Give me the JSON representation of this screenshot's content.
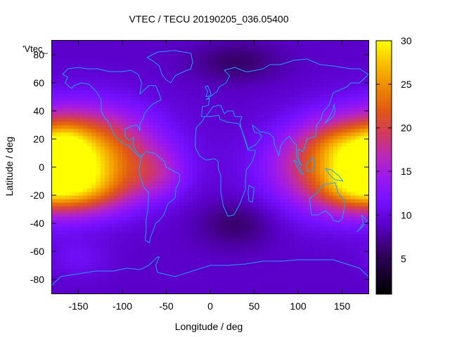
{
  "chart_data": {
    "type": "heatmap",
    "title": "VTEC / TECU 20190205_036.05400",
    "xlabel": "Longitude / deg",
    "ylabel": "Latitude / deg",
    "key_label": "'Vtec_",
    "xlim": [
      -180,
      180
    ],
    "ylim": [
      -90,
      90
    ],
    "x_ticks": [
      -150,
      -100,
      -50,
      0,
      50,
      100,
      150
    ],
    "y_ticks": [
      -80,
      -60,
      -40,
      -20,
      0,
      20,
      40,
      60,
      80
    ],
    "color_range": [
      1,
      30
    ],
    "colorbar_ticks": [
      5,
      10,
      15,
      20,
      25,
      30
    ],
    "colormap": [
      "#000000",
      "#1a0033",
      "#3a0070",
      "#5a00c8",
      "#7410ff",
      "#9a18f0",
      "#b928b8",
      "#d23c5a",
      "#e05a14",
      "#ee8a00",
      "#f8c000",
      "#ffff00"
    ],
    "overlay_color": "#1aa3ff",
    "grid": false,
    "features": [
      {
        "lon": -140,
        "lat": 10,
        "sx": 55,
        "sy": 22,
        "a": 15
      },
      {
        "lon": -150,
        "lat": -16,
        "sx": 40,
        "sy": 12,
        "a": 8
      },
      {
        "lon": -165,
        "lat": 15,
        "sx": 18,
        "sy": 12,
        "a": 4
      },
      {
        "lon": -60,
        "lat": -5,
        "sx": 25,
        "sy": 12,
        "a": 4
      },
      {
        "lon": 150,
        "lat": 0,
        "sx": 55,
        "sy": 22,
        "a": 13
      },
      {
        "lon": 160,
        "lat": -14,
        "sx": 25,
        "sy": 10,
        "a": 4
      },
      {
        "lon": 150,
        "lat": 16,
        "sx": 28,
        "sy": 10,
        "a": 3
      },
      {
        "lon": 30,
        "lat": -40,
        "sx": 30,
        "sy": 12,
        "a": -3
      },
      {
        "lon": 30,
        "lat": 75,
        "sx": 35,
        "sy": 10,
        "a": -3
      },
      {
        "lon": -150,
        "lat": -65,
        "sx": 25,
        "sy": 10,
        "a": 2
      }
    ],
    "background_level": 9,
    "coastlines": [
      {
        "name": "north-america",
        "points": [
          [
            -168,
            66
          ],
          [
            -162,
            70
          ],
          [
            -150,
            71
          ],
          [
            -140,
            70
          ],
          [
            -128,
            70
          ],
          [
            -115,
            68
          ],
          [
            -100,
            68
          ],
          [
            -90,
            69
          ],
          [
            -82,
            66
          ],
          [
            -78,
            60
          ],
          [
            -80,
            52
          ],
          [
            -70,
            58
          ],
          [
            -62,
            58
          ],
          [
            -58,
            52
          ],
          [
            -56,
            48
          ],
          [
            -65,
            45
          ],
          [
            -70,
            42
          ],
          [
            -75,
            38
          ],
          [
            -76,
            35
          ],
          [
            -80,
            31
          ],
          [
            -80,
            26
          ],
          [
            -82,
            29
          ],
          [
            -84,
            30
          ],
          [
            -90,
            29
          ],
          [
            -97,
            27
          ],
          [
            -97,
            22
          ],
          [
            -92,
            19
          ],
          [
            -87,
            21
          ],
          [
            -88,
            16
          ],
          [
            -83,
            10
          ],
          [
            -78,
            8
          ],
          [
            -80,
            7
          ],
          [
            -85,
            10
          ],
          [
            -92,
            15
          ],
          [
            -97,
            16
          ],
          [
            -105,
            20
          ],
          [
            -110,
            24
          ],
          [
            -114,
            30
          ],
          [
            -117,
            33
          ],
          [
            -121,
            36
          ],
          [
            -124,
            40
          ],
          [
            -124,
            48
          ],
          [
            -130,
            54
          ],
          [
            -138,
            59
          ],
          [
            -147,
            60
          ],
          [
            -155,
            58
          ],
          [
            -158,
            56
          ],
          [
            -165,
            60
          ],
          [
            -162,
            64
          ],
          [
            -168,
            66
          ]
        ]
      },
      {
        "name": "south-america",
        "points": [
          [
            -78,
            8
          ],
          [
            -73,
            11
          ],
          [
            -64,
            10
          ],
          [
            -60,
            8
          ],
          [
            -52,
            4
          ],
          [
            -50,
            0
          ],
          [
            -44,
            -2
          ],
          [
            -35,
            -5
          ],
          [
            -35,
            -10
          ],
          [
            -39,
            -15
          ],
          [
            -40,
            -22
          ],
          [
            -48,
            -26
          ],
          [
            -53,
            -34
          ],
          [
            -58,
            -38
          ],
          [
            -62,
            -40
          ],
          [
            -65,
            -45
          ],
          [
            -68,
            -50
          ],
          [
            -69,
            -54
          ],
          [
            -74,
            -52
          ],
          [
            -73,
            -45
          ],
          [
            -73,
            -37
          ],
          [
            -71,
            -30
          ],
          [
            -70,
            -18
          ],
          [
            -76,
            -14
          ],
          [
            -80,
            -6
          ],
          [
            -81,
            -2
          ],
          [
            -80,
            1
          ],
          [
            -78,
            8
          ]
        ]
      },
      {
        "name": "greenland",
        "points": [
          [
            -72,
            78
          ],
          [
            -60,
            82
          ],
          [
            -40,
            83
          ],
          [
            -22,
            81
          ],
          [
            -20,
            75
          ],
          [
            -22,
            70
          ],
          [
            -30,
            68
          ],
          [
            -40,
            65
          ],
          [
            -45,
            60
          ],
          [
            -50,
            62
          ],
          [
            -55,
            66
          ],
          [
            -58,
            72
          ],
          [
            -66,
            76
          ],
          [
            -72,
            78
          ]
        ]
      },
      {
        "name": "africa",
        "points": [
          [
            -17,
            21
          ],
          [
            -16,
            28
          ],
          [
            -10,
            32
          ],
          [
            -6,
            36
          ],
          [
            0,
            36
          ],
          [
            10,
            37
          ],
          [
            11,
            34
          ],
          [
            20,
            32
          ],
          [
            32,
            31
          ],
          [
            35,
            28
          ],
          [
            43,
            12
          ],
          [
            51,
            12
          ],
          [
            51,
            10
          ],
          [
            48,
            4
          ],
          [
            41,
            -2
          ],
          [
            40,
            -10
          ],
          [
            40,
            -16
          ],
          [
            35,
            -24
          ],
          [
            33,
            -27
          ],
          [
            27,
            -34
          ],
          [
            20,
            -35
          ],
          [
            18,
            -32
          ],
          [
            15,
            -28
          ],
          [
            12,
            -18
          ],
          [
            12,
            -6
          ],
          [
            9,
            -1
          ],
          [
            9,
            4
          ],
          [
            5,
            6
          ],
          [
            -5,
            5
          ],
          [
            -12,
            8
          ],
          [
            -17,
            14
          ],
          [
            -17,
            21
          ]
        ]
      },
      {
        "name": "madagascar",
        "points": [
          [
            44,
            -13
          ],
          [
            50,
            -15
          ],
          [
            48,
            -25
          ],
          [
            44,
            -24
          ],
          [
            43,
            -18
          ],
          [
            44,
            -13
          ]
        ]
      },
      {
        "name": "eurasia",
        "points": [
          [
            -10,
            36
          ],
          [
            -9,
            43
          ],
          [
            -2,
            44
          ],
          [
            -1,
            49
          ],
          [
            -5,
            48
          ],
          [
            4,
            52
          ],
          [
            8,
            54
          ],
          [
            10,
            57
          ],
          [
            18,
            60
          ],
          [
            22,
            65
          ],
          [
            16,
            69
          ],
          [
            28,
            71
          ],
          [
            40,
            68
          ],
          [
            44,
            68
          ],
          [
            60,
            70
          ],
          [
            68,
            73
          ],
          [
            80,
            73
          ],
          [
            95,
            76
          ],
          [
            110,
            77
          ],
          [
            125,
            73
          ],
          [
            140,
            72
          ],
          [
            160,
            70
          ],
          [
            170,
            70
          ],
          [
            180,
            66
          ],
          [
            170,
            60
          ],
          [
            160,
            60
          ],
          [
            155,
            57
          ],
          [
            140,
            53
          ],
          [
            135,
            44
          ],
          [
            128,
            39
          ],
          [
            126,
            34
          ],
          [
            121,
            30
          ],
          [
            120,
            22
          ],
          [
            110,
            20
          ],
          [
            106,
            11
          ],
          [
            100,
            13
          ],
          [
            100,
            7
          ],
          [
            104,
            1
          ],
          [
            101,
            3
          ],
          [
            98,
            8
          ],
          [
            98,
            16
          ],
          [
            94,
            18
          ],
          [
            90,
            22
          ],
          [
            86,
            20
          ],
          [
            80,
            15
          ],
          [
            78,
            8
          ],
          [
            73,
            16
          ],
          [
            72,
            21
          ],
          [
            67,
            24
          ],
          [
            60,
            25
          ],
          [
            57,
            25
          ],
          [
            52,
            28
          ],
          [
            48,
            30
          ],
          [
            50,
            25
          ],
          [
            56,
            24
          ],
          [
            59,
            22
          ],
          [
            52,
            16
          ],
          [
            43,
            13
          ],
          [
            39,
            21
          ],
          [
            35,
            28
          ],
          [
            34,
            32
          ],
          [
            36,
            36
          ],
          [
            28,
            36
          ],
          [
            26,
            40
          ],
          [
            22,
            40
          ],
          [
            20,
            40
          ],
          [
            16,
            38
          ],
          [
            12,
            44
          ],
          [
            9,
            44
          ],
          [
            3,
            43
          ],
          [
            -5,
            36
          ],
          [
            -10,
            36
          ]
        ]
      },
      {
        "name": "british-isles",
        "points": [
          [
            -5,
            50
          ],
          [
            1,
            51
          ],
          [
            0,
            54
          ],
          [
            -3,
            58
          ],
          [
            -6,
            57
          ],
          [
            -3,
            54
          ],
          [
            -5,
            50
          ]
        ]
      },
      {
        "name": "japan",
        "points": [
          [
            130,
            31
          ],
          [
            136,
            34
          ],
          [
            140,
            36
          ],
          [
            142,
            40
          ],
          [
            141,
            45
          ],
          [
            139,
            40
          ],
          [
            135,
            35
          ],
          [
            130,
            31
          ]
        ]
      },
      {
        "name": "borneo",
        "points": [
          [
            109,
            2
          ],
          [
            113,
            4
          ],
          [
            117,
            7
          ],
          [
            119,
            1
          ],
          [
            116,
            -3
          ],
          [
            110,
            -3
          ],
          [
            109,
            2
          ]
        ]
      },
      {
        "name": "sumatra",
        "points": [
          [
            95,
            5
          ],
          [
            98,
            4
          ],
          [
            106,
            -5
          ],
          [
            104,
            -5
          ],
          [
            100,
            -1
          ],
          [
            95,
            5
          ]
        ]
      },
      {
        "name": "new-guinea",
        "points": [
          [
            131,
            -1
          ],
          [
            138,
            -2
          ],
          [
            146,
            -6
          ],
          [
            151,
            -10
          ],
          [
            142,
            -9
          ],
          [
            138,
            -7
          ],
          [
            131,
            -1
          ]
        ]
      },
      {
        "name": "australia",
        "points": [
          [
            113,
            -22
          ],
          [
            115,
            -34
          ],
          [
            123,
            -34
          ],
          [
            131,
            -31
          ],
          [
            138,
            -35
          ],
          [
            140,
            -38
          ],
          [
            146,
            -39
          ],
          [
            150,
            -37
          ],
          [
            153,
            -28
          ],
          [
            153,
            -24
          ],
          [
            146,
            -19
          ],
          [
            142,
            -11
          ],
          [
            136,
            -12
          ],
          [
            130,
            -12
          ],
          [
            125,
            -15
          ],
          [
            122,
            -18
          ],
          [
            114,
            -22
          ],
          [
            113,
            -22
          ]
        ]
      },
      {
        "name": "new-zealand",
        "points": [
          [
            172,
            -34
          ],
          [
            178,
            -38
          ],
          [
            174,
            -42
          ],
          [
            167,
            -46
          ],
          [
            170,
            -44
          ],
          [
            174,
            -40
          ],
          [
            172,
            -34
          ]
        ]
      },
      {
        "name": "antarctica",
        "points": [
          [
            -180,
            -84
          ],
          [
            -170,
            -78
          ],
          [
            -150,
            -76
          ],
          [
            -130,
            -74
          ],
          [
            -110,
            -74
          ],
          [
            -95,
            -72
          ],
          [
            -80,
            -73
          ],
          [
            -70,
            -70
          ],
          [
            -60,
            -64
          ],
          [
            -58,
            -64
          ],
          [
            -62,
            -70
          ],
          [
            -60,
            -75
          ],
          [
            -40,
            -78
          ],
          [
            -20,
            -74
          ],
          [
            0,
            -70
          ],
          [
            20,
            -70
          ],
          [
            40,
            -69
          ],
          [
            60,
            -67
          ],
          [
            80,
            -67
          ],
          [
            100,
            -66
          ],
          [
            120,
            -66
          ],
          [
            140,
            -66
          ],
          [
            160,
            -70
          ],
          [
            170,
            -72
          ],
          [
            180,
            -78
          ]
        ]
      }
    ]
  }
}
